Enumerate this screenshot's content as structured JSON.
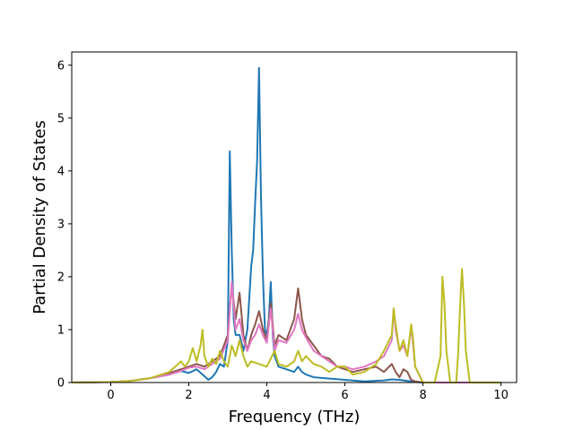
{
  "chart_data": {
    "type": "line",
    "title": "",
    "xlabel": "Frequency (THz)",
    "ylabel": "Partial Density of States",
    "xlim": [
      -1.0,
      10.4
    ],
    "ylim": [
      0,
      6.25
    ],
    "xticks": [
      0,
      2,
      4,
      6,
      8,
      10
    ],
    "yticks": [
      0,
      1,
      2,
      3,
      4,
      5,
      6
    ],
    "grid": false,
    "legend": "none",
    "series": [
      {
        "color": "#1f77b4",
        "x": [
          -1.0,
          0.0,
          0.5,
          1.0,
          1.5,
          1.8,
          2.0,
          2.2,
          2.4,
          2.5,
          2.6,
          2.7,
          2.8,
          2.9,
          3.0,
          3.05,
          3.1,
          3.15,
          3.2,
          3.3,
          3.4,
          3.5,
          3.6,
          3.65,
          3.7,
          3.75,
          3.8,
          3.85,
          3.9,
          3.95,
          4.0,
          4.05,
          4.1,
          4.15,
          4.2,
          4.3,
          4.5,
          4.7,
          4.8,
          4.9,
          5.0,
          5.2,
          5.5,
          6.0,
          6.5,
          7.0,
          7.2,
          7.4,
          7.6,
          7.8,
          8.0,
          9.0,
          10.0
        ],
        "y": [
          0.0,
          0.01,
          0.03,
          0.08,
          0.15,
          0.22,
          0.18,
          0.25,
          0.12,
          0.05,
          0.1,
          0.2,
          0.35,
          0.3,
          0.8,
          4.37,
          2.5,
          1.2,
          0.9,
          0.9,
          0.6,
          1.0,
          2.2,
          2.5,
          3.4,
          4.2,
          5.95,
          3.5,
          2.0,
          1.0,
          0.9,
          1.2,
          1.9,
          0.9,
          0.5,
          0.3,
          0.25,
          0.2,
          0.3,
          0.2,
          0.15,
          0.1,
          0.08,
          0.05,
          0.02,
          0.04,
          0.06,
          0.05,
          0.03,
          0.01,
          0.0,
          0.0,
          0.0
        ]
      },
      {
        "color": "#8c564b",
        "x": [
          -1.0,
          0.0,
          0.5,
          1.0,
          1.5,
          1.8,
          2.0,
          2.2,
          2.4,
          2.6,
          2.8,
          3.0,
          3.1,
          3.2,
          3.3,
          3.4,
          3.5,
          3.6,
          3.7,
          3.8,
          3.9,
          4.0,
          4.1,
          4.2,
          4.3,
          4.5,
          4.7,
          4.8,
          4.9,
          5.0,
          5.2,
          5.4,
          5.6,
          5.8,
          6.0,
          6.2,
          6.5,
          6.8,
          7.0,
          7.2,
          7.3,
          7.4,
          7.5,
          7.6,
          7.7,
          7.8,
          8.0,
          9.0,
          10.0
        ],
        "y": [
          0.0,
          0.01,
          0.03,
          0.08,
          0.18,
          0.25,
          0.3,
          0.35,
          0.3,
          0.4,
          0.5,
          0.9,
          1.85,
          1.2,
          1.7,
          0.9,
          0.6,
          0.9,
          1.1,
          1.35,
          1.0,
          0.8,
          1.5,
          0.7,
          0.9,
          0.8,
          1.2,
          1.78,
          1.2,
          0.9,
          0.7,
          0.5,
          0.45,
          0.3,
          0.25,
          0.2,
          0.25,
          0.3,
          0.2,
          0.35,
          0.2,
          0.1,
          0.25,
          0.2,
          0.05,
          0.02,
          0.0,
          0.0,
          0.0
        ]
      },
      {
        "color": "#e377c2",
        "x": [
          -1.0,
          0.0,
          0.5,
          1.0,
          1.5,
          1.8,
          2.0,
          2.2,
          2.4,
          2.6,
          2.8,
          3.0,
          3.1,
          3.2,
          3.3,
          3.4,
          3.5,
          3.6,
          3.7,
          3.8,
          3.9,
          4.0,
          4.1,
          4.2,
          4.3,
          4.5,
          4.7,
          4.8,
          4.9,
          5.0,
          5.2,
          5.4,
          5.6,
          5.8,
          6.0,
          6.2,
          6.5,
          6.8,
          7.0,
          7.2,
          7.25,
          7.3,
          7.4,
          7.5,
          7.6,
          7.7,
          7.75,
          7.8,
          8.0,
          9.0,
          10.0
        ],
        "y": [
          0.0,
          0.01,
          0.03,
          0.08,
          0.15,
          0.22,
          0.28,
          0.3,
          0.25,
          0.35,
          0.45,
          0.8,
          1.9,
          1.0,
          1.2,
          0.8,
          0.6,
          0.8,
          0.9,
          1.1,
          0.9,
          0.75,
          1.4,
          0.6,
          0.8,
          0.75,
          1.0,
          1.3,
          1.0,
          0.85,
          0.6,
          0.5,
          0.4,
          0.3,
          0.3,
          0.25,
          0.3,
          0.4,
          0.5,
          0.8,
          1.4,
          1.0,
          0.6,
          0.7,
          0.5,
          1.05,
          0.7,
          0.3,
          0.0,
          0.0,
          0.0
        ]
      },
      {
        "color": "#bcbd22",
        "x": [
          -1.0,
          0.0,
          0.5,
          1.0,
          1.5,
          1.8,
          1.9,
          2.0,
          2.1,
          2.2,
          2.3,
          2.35,
          2.4,
          2.5,
          2.6,
          2.7,
          2.8,
          2.9,
          3.0,
          3.1,
          3.2,
          3.3,
          3.4,
          3.5,
          3.6,
          3.8,
          4.0,
          4.2,
          4.3,
          4.5,
          4.7,
          4.8,
          4.9,
          5.0,
          5.2,
          5.4,
          5.6,
          5.8,
          6.0,
          6.2,
          6.5,
          6.8,
          7.0,
          7.2,
          7.25,
          7.3,
          7.4,
          7.5,
          7.6,
          7.7,
          7.75,
          7.8,
          8.0,
          8.3,
          8.45,
          8.5,
          8.55,
          8.6,
          8.7,
          8.8,
          8.85,
          8.9,
          8.95,
          9.0,
          9.05,
          9.1,
          9.2,
          9.5,
          10.0
        ],
        "y": [
          0.0,
          0.01,
          0.03,
          0.08,
          0.2,
          0.4,
          0.3,
          0.4,
          0.65,
          0.4,
          0.7,
          1.0,
          0.5,
          0.3,
          0.45,
          0.35,
          0.6,
          0.4,
          0.3,
          0.7,
          0.5,
          0.8,
          0.5,
          0.3,
          0.4,
          0.35,
          0.3,
          0.6,
          0.35,
          0.3,
          0.4,
          0.6,
          0.4,
          0.5,
          0.35,
          0.3,
          0.2,
          0.3,
          0.3,
          0.15,
          0.2,
          0.35,
          0.6,
          0.9,
          1.4,
          1.1,
          0.6,
          0.8,
          0.5,
          1.1,
          0.8,
          0.3,
          0.0,
          0.0,
          0.5,
          2.0,
          1.5,
          0.6,
          0.0,
          0.0,
          0.0,
          0.5,
          1.4,
          2.15,
          1.5,
          0.6,
          0.0,
          0.0,
          0.0
        ]
      }
    ]
  }
}
